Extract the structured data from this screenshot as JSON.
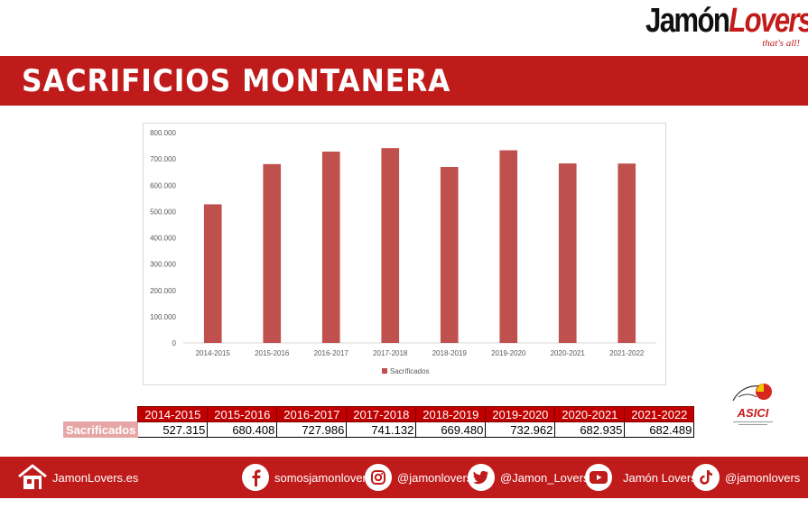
{
  "brand": {
    "name_part1": "Jamón",
    "name_part2": "Lovers",
    "tagline": "that's all!"
  },
  "banner": {
    "title": "SACRIFICIOS MONTANERA"
  },
  "colors": {
    "brand_red": "#c01b1b",
    "bar": "#c0504d",
    "table_header": "#c00000",
    "row_label_bg": "#e6a6a6"
  },
  "chart_data": {
    "type": "bar",
    "categories": [
      "2014-2015",
      "2015-2016",
      "2016-2017",
      "2017-2018",
      "2018-2019",
      "2019-2020",
      "2020-2021",
      "2021-2022"
    ],
    "series": [
      {
        "name": "Sacrificados",
        "values": [
          527315,
          680408,
          727986,
          741132,
          669480,
          732962,
          682935,
          682489
        ]
      }
    ],
    "ylim": [
      0,
      800000
    ],
    "yticks": [
      0,
      100000,
      200000,
      300000,
      400000,
      500000,
      600000,
      700000,
      800000
    ],
    "ytick_labels": [
      "0",
      "100.000",
      "200.000",
      "300.000",
      "400.000",
      "500.000",
      "600.000",
      "700.000",
      "800.000"
    ],
    "legend_position": "bottom",
    "grid": false
  },
  "table": {
    "headers": [
      "2014-2015",
      "2015-2016",
      "2016-2017",
      "2017-2018",
      "2018-2019",
      "2019-2020",
      "2020-2021",
      "2021-2022"
    ],
    "row_label": "Sacrificados",
    "values": [
      "527.315",
      "680.408",
      "727.986",
      "741.132",
      "669.480",
      "732.962",
      "682.935",
      "682.489"
    ]
  },
  "partner_logo": {
    "label": "ASICI",
    "icon": "asici-logo"
  },
  "footer": {
    "website": {
      "icon": "home-icon",
      "text": "JamonLovers.es"
    },
    "facebook": {
      "icon": "facebook-icon",
      "text": "somosjamonlovers"
    },
    "instagram": {
      "icon": "instagram-icon",
      "text": "@jamonlovers"
    },
    "twitter": {
      "icon": "twitter-icon",
      "text": "@Jamon_Lovers"
    },
    "youtube": {
      "icon": "youtube-icon",
      "text": "Jamón Lovers"
    },
    "tiktok": {
      "icon": "tiktok-icon",
      "text": "@jamonlovers"
    }
  }
}
